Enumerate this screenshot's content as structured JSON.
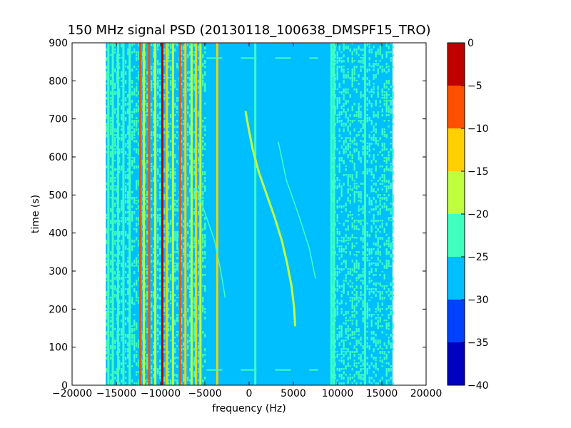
{
  "chart_data": {
    "type": "heatmap",
    "title": "150 MHz signal PSD (20130118_100638_DMSPF15_TRO)",
    "xlabel": "frequency (Hz)",
    "ylabel": "time (s)",
    "xlim": [
      -20000,
      20000
    ],
    "ylim": [
      0,
      900
    ],
    "x_ticks": [
      -20000,
      -15000,
      -10000,
      -5000,
      0,
      5000,
      10000,
      15000,
      20000
    ],
    "x_tick_labels": [
      "−20000",
      "−15000",
      "−10000",
      "−5000",
      "0",
      "5000",
      "10000",
      "15000",
      "20000"
    ],
    "y_ticks": [
      0,
      100,
      200,
      300,
      400,
      500,
      600,
      700,
      800,
      900
    ],
    "y_tick_labels": [
      "0",
      "100",
      "200",
      "300",
      "400",
      "500",
      "600",
      "700",
      "800",
      "900"
    ],
    "data_extent_x": [
      -16200,
      16200
    ],
    "background_level": -28,
    "colorbar": {
      "levels": [
        -40,
        -35,
        -30,
        -25,
        -20,
        -15,
        -10,
        -5,
        0
      ],
      "tick_labels": [
        "−40",
        "−35",
        "−30",
        "−25",
        "−20",
        "−15",
        "−10",
        "−5",
        "0"
      ],
      "colors": [
        "#0000bf",
        "#0040ff",
        "#00bfff",
        "#40ffbf",
        "#bfff40",
        "#ffcf00",
        "#ff5000",
        "#bf0000"
      ]
    },
    "vertical_lines": [
      {
        "freq": -15900,
        "level": -22
      },
      {
        "freq": -15400,
        "level": -22
      },
      {
        "freq": -14800,
        "level": -22
      },
      {
        "freq": -14200,
        "level": -22
      },
      {
        "freq": -13500,
        "level": -22
      },
      {
        "freq": -12300,
        "level": -8
      },
      {
        "freq": -11900,
        "level": -18
      },
      {
        "freq": -11300,
        "level": -8
      },
      {
        "freq": -10600,
        "level": -18
      },
      {
        "freq": -9800,
        "level": -3
      },
      {
        "freq": -9300,
        "level": -13
      },
      {
        "freq": -8600,
        "level": -18
      },
      {
        "freq": -7800,
        "level": -8
      },
      {
        "freq": -7200,
        "level": -13
      },
      {
        "freq": -6500,
        "level": -18
      },
      {
        "freq": -6000,
        "level": -13
      },
      {
        "freq": -5500,
        "level": -18
      },
      {
        "freq": -3600,
        "level": -13
      },
      {
        "freq": 700,
        "level": -22
      },
      {
        "freq": 9300,
        "level": -22
      },
      {
        "freq": 9600,
        "level": -22
      },
      {
        "freq": 13100,
        "level": -22
      }
    ],
    "noise_bands": [
      {
        "x": [
          -16200,
          -5000
        ],
        "level": -22
      },
      {
        "x": [
          9400,
          16200
        ],
        "level": -22
      }
    ],
    "doppler_trace_main": {
      "level": -18,
      "points": [
        {
          "t": 720,
          "f": -400
        },
        {
          "t": 680,
          "f": -100
        },
        {
          "t": 620,
          "f": 400
        },
        {
          "t": 560,
          "f": 1100
        },
        {
          "t": 500,
          "f": 2000
        },
        {
          "t": 440,
          "f": 2900
        },
        {
          "t": 380,
          "f": 3700
        },
        {
          "t": 320,
          "f": 4300
        },
        {
          "t": 260,
          "f": 4800
        },
        {
          "t": 200,
          "f": 5100
        },
        {
          "t": 155,
          "f": 5200
        }
      ]
    },
    "doppler_trace_faint_right": {
      "level": -22,
      "points": [
        {
          "t": 640,
          "f": 3300
        },
        {
          "t": 540,
          "f": 4200
        },
        {
          "t": 440,
          "f": 5700
        },
        {
          "t": 360,
          "f": 6800
        },
        {
          "t": 280,
          "f": 7500
        }
      ]
    },
    "doppler_trace_faint_left": {
      "level": -22,
      "points": [
        {
          "t": 520,
          "f": -6000
        },
        {
          "t": 440,
          "f": -4800
        },
        {
          "t": 380,
          "f": -3900
        },
        {
          "t": 300,
          "f": -3200
        },
        {
          "t": 230,
          "f": -2700
        }
      ]
    },
    "horizontal_dashes": [
      {
        "t": 860,
        "x": [
          -4800,
          7800
        ],
        "level": -22
      },
      {
        "t": 40,
        "x": [
          -4800,
          7800
        ],
        "level": -22
      }
    ]
  }
}
